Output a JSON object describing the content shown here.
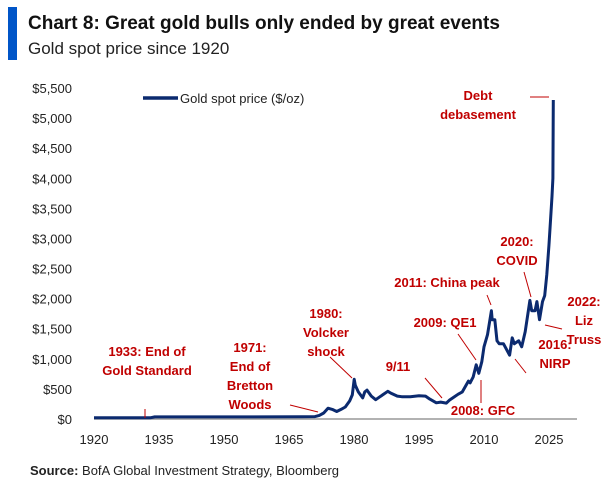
{
  "chart_data": {
    "type": "line",
    "title": "Chart 8: Great gold bulls only ended by great events",
    "subtitle": "Gold spot price since 1920",
    "source_label": "Source:",
    "source_text": " BofA Global Investment Strategy, Bloomberg",
    "xlabel": "",
    "ylabel": "",
    "xlim": [
      1920,
      2031
    ],
    "ylim": [
      0,
      5500
    ],
    "x_ticks": [
      1920,
      1935,
      1950,
      1965,
      1980,
      1995,
      2010,
      2025
    ],
    "y_ticks": [
      0,
      500,
      1000,
      1500,
      2000,
      2500,
      3000,
      3500,
      4000,
      4500,
      5000,
      5500
    ],
    "y_tick_labels": [
      "$0",
      "$500",
      "$1,000",
      "$1,500",
      "$2,000",
      "$2,500",
      "$3,000",
      "$3,500",
      "$4,000",
      "$4,500",
      "$5,000",
      "$5,500"
    ],
    "grid": false,
    "legend": {
      "placement": "top-left",
      "entries": [
        "Gold spot price ($/oz)"
      ]
    },
    "series": [
      {
        "name": "Gold spot price ($/oz)",
        "color": "#0b2a6f",
        "x": [
          1920,
          1933,
          1934,
          1950,
          1968,
          1971,
          1972,
          1973,
          1974,
          1975,
          1976,
          1977,
          1978,
          1979,
          1979.6,
          1980.05,
          1980.3,
          1981,
          1982,
          1982.5,
          1983,
          1984,
          1985,
          1986,
          1987.8,
          1988.5,
          1990,
          1991,
          1993,
          1995,
          1996.5,
          1997.5,
          1999,
          2000,
          2001.3,
          2002,
          2003,
          2004,
          2005,
          2006.4,
          2006.8,
          2007.5,
          2008.2,
          2008.8,
          2009.5,
          2010,
          2010.8,
          2011.7,
          2011.9,
          2012.5,
          2013,
          2013.5,
          2014.5,
          2015.9,
          2016.5,
          2017,
          2018,
          2018.7,
          2019.5,
          2020.6,
          2021,
          2021.8,
          2022.2,
          2022.8,
          2023.5,
          2024,
          2024.5,
          2025,
          2025.4,
          2025.7,
          2025.9,
          2026
        ],
        "y": [
          20,
          20,
          35,
          35,
          38,
          40,
          60,
          100,
          180,
          160,
          125,
          160,
          200,
          300,
          400,
          660,
          560,
          450,
          350,
          450,
          480,
          380,
          320,
          370,
          460,
          430,
          380,
          370,
          370,
          385,
          380,
          330,
          270,
          280,
          265,
          310,
          360,
          410,
          450,
          630,
          600,
          700,
          900,
          760,
          950,
          1200,
          1400,
          1800,
          1650,
          1650,
          1300,
          1250,
          1250,
          1060,
          1350,
          1250,
          1300,
          1200,
          1450,
          1970,
          1800,
          1800,
          1950,
          1650,
          1950,
          2050,
          2400,
          2900,
          3350,
          3700,
          4000,
          5300
        ]
      }
    ],
    "annotations": [
      {
        "lines": [
          "1933: End of",
          "Gold Standard"
        ]
      },
      {
        "lines": [
          "1971:",
          "End of",
          "Bretton",
          "Woods"
        ]
      },
      {
        "lines": [
          "1980:",
          "Volcker",
          "shock"
        ]
      },
      {
        "lines": [
          "9/11"
        ]
      },
      {
        "lines": [
          "2008: GFC"
        ]
      },
      {
        "lines": [
          "2009: QE1"
        ]
      },
      {
        "lines": [
          "2011: China peak"
        ]
      },
      {
        "lines": [
          "2016:",
          "NIRP"
        ]
      },
      {
        "lines": [
          "2020:",
          "COVID"
        ]
      },
      {
        "lines": [
          "2022:",
          "Liz",
          "Truss"
        ]
      },
      {
        "lines": [
          "Debt",
          "debasement"
        ]
      }
    ],
    "accent_color": "#0055c8",
    "annotation_color": "#c00000"
  }
}
